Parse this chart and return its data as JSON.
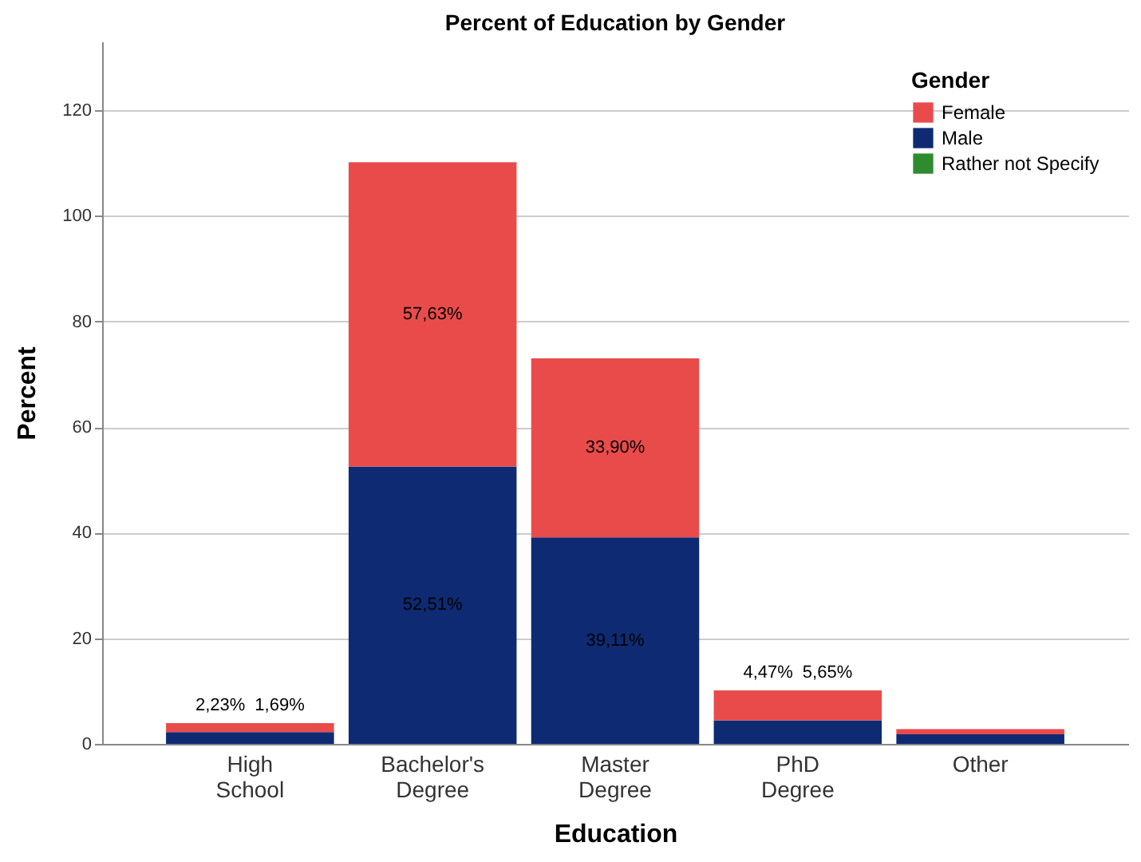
{
  "chart_data": {
    "type": "bar",
    "title": "Percent of Education by Gender",
    "xlabel": "Education",
    "ylabel": "Percent",
    "legend_title": "Gender",
    "categories": [
      "High School",
      "Bachelor's Degree",
      "Master Degree",
      "PhD Degree",
      "Other"
    ],
    "stacked": true,
    "series": [
      {
        "name": "Rather not Specify",
        "color": "#2e8b2e",
        "values": [
          null,
          null,
          null,
          null,
          null
        ]
      },
      {
        "name": "Male",
        "color": "#0e2a72",
        "values": [
          2.23,
          52.51,
          39.11,
          4.47,
          1.8
        ],
        "value_labels": [
          "2,23%",
          "52,51%",
          "39,11%",
          "4,47%",
          null
        ]
      },
      {
        "name": "Female",
        "color": "#e94b4b",
        "values": [
          1.69,
          57.63,
          33.9,
          5.65,
          1.0
        ],
        "value_labels": [
          "1,69%",
          "57,63%",
          "33,90%",
          "5,65%",
          null
        ]
      }
    ],
    "ylim": [
      0,
      133
    ],
    "yticks": [
      0,
      20,
      40,
      60,
      80,
      100,
      120
    ],
    "grid": "y",
    "legend": "top right"
  }
}
